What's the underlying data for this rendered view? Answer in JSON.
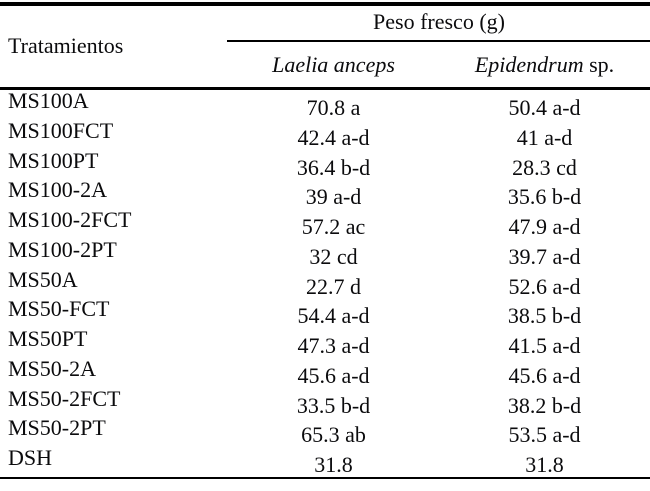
{
  "table": {
    "col1_header": "Tratamientos",
    "group_header": "Peso fresco (g)",
    "col2_header": "Laelia anceps",
    "col3_header_italic": "Epidendrum",
    "col3_header_regular": " sp.",
    "rows": [
      {
        "treatment": "MS100A",
        "laelia": "70.8 a",
        "epidendrum": "50.4 a-d"
      },
      {
        "treatment": "MS100FCT",
        "laelia": "42.4 a-d",
        "epidendrum": "41 a-d"
      },
      {
        "treatment": "MS100PT",
        "laelia": "36.4 b-d",
        "epidendrum": "28.3 cd"
      },
      {
        "treatment": "MS100-2A",
        "laelia": "39 a-d",
        "epidendrum": "35.6 b-d"
      },
      {
        "treatment": "MS100-2FCT",
        "laelia": "57.2 ac",
        "epidendrum": "47.9 a-d"
      },
      {
        "treatment": "MS100-2PT",
        "laelia": "32 cd",
        "epidendrum": "39.7 a-d"
      },
      {
        "treatment": "MS50A",
        "laelia": "22.7 d",
        "epidendrum": "52.6 a-d"
      },
      {
        "treatment": "MS50-FCT",
        "laelia": "54.4 a-d",
        "epidendrum": "38.5 b-d"
      },
      {
        "treatment": "MS50PT",
        "laelia": "47.3 a-d",
        "epidendrum": "41.5 a-d"
      },
      {
        "treatment": "MS50-2A",
        "laelia": "45.6 a-d",
        "epidendrum": "45.6 a-d"
      },
      {
        "treatment": "MS50-2FCT",
        "laelia": "33.5 b-d",
        "epidendrum": "38.2 b-d"
      },
      {
        "treatment": "MS50-2PT",
        "laelia": "65.3 ab",
        "epidendrum": "53.5 a-d"
      },
      {
        "treatment": "DSH",
        "laelia": "31.8",
        "epidendrum": "31.8"
      }
    ]
  },
  "chart_data": {
    "type": "table",
    "title": "Peso fresco (g)",
    "columns": [
      "Tratamientos",
      "Laelia anceps",
      "Epidendrum sp."
    ],
    "rows": [
      [
        "MS100A",
        "70.8 a",
        "50.4 a-d"
      ],
      [
        "MS100FCT",
        "42.4 a-d",
        "41 a-d"
      ],
      [
        "MS100PT",
        "36.4 b-d",
        "28.3 cd"
      ],
      [
        "MS100-2A",
        "39 a-d",
        "35.6 b-d"
      ],
      [
        "MS100-2FCT",
        "57.2 ac",
        "47.9 a-d"
      ],
      [
        "MS100-2PT",
        "32 cd",
        "39.7 a-d"
      ],
      [
        "MS50A",
        "22.7 d",
        "52.6 a-d"
      ],
      [
        "MS50-FCT",
        "54.4 a-d",
        "38.5 b-d"
      ],
      [
        "MS50PT",
        "47.3 a-d",
        "41.5 a-d"
      ],
      [
        "MS50-2A",
        "45.6 a-d",
        "45.6 a-d"
      ],
      [
        "MS50-2FCT",
        "33.5 b-d",
        "38.2 b-d"
      ],
      [
        "MS50-2PT",
        "65.3 ab",
        "53.5 a-d"
      ],
      [
        "DSH",
        "31.8",
        "31.8"
      ]
    ]
  }
}
